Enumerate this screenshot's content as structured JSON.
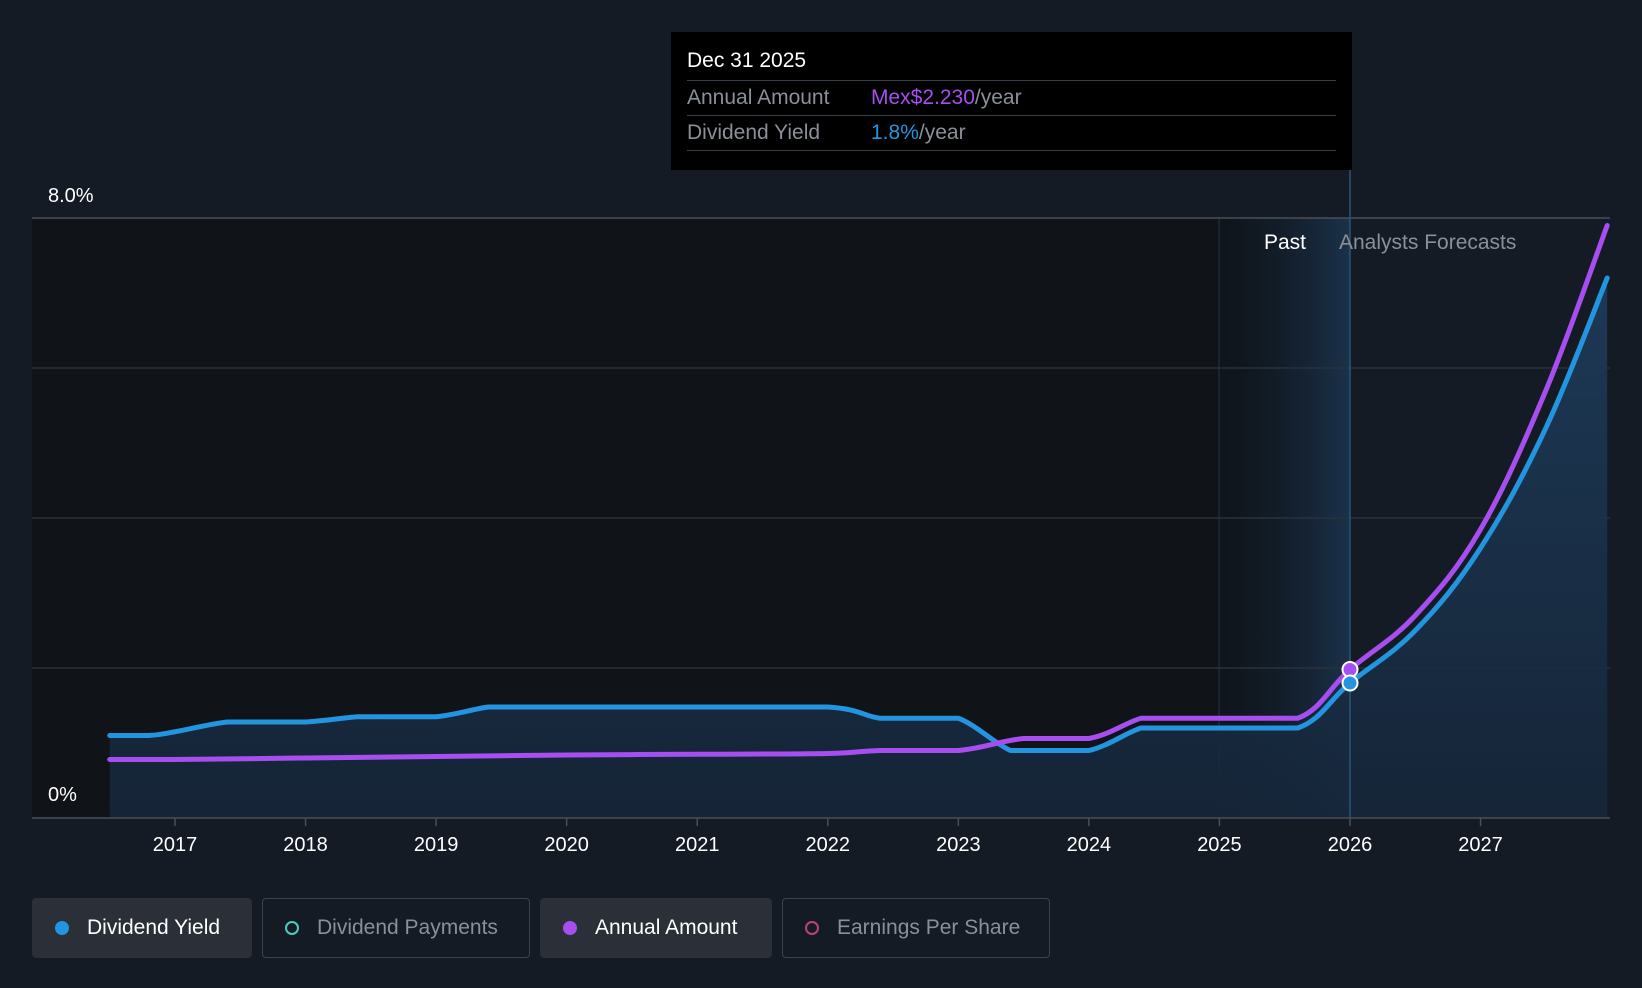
{
  "chart_data": {
    "type": "line",
    "y_axis": {
      "top_label": "8.0%",
      "bottom_label": "0%",
      "ylim": [
        0,
        8
      ]
    },
    "x_axis": {
      "tick_labels": [
        "2017",
        "2018",
        "2019",
        "2020",
        "2021",
        "2022",
        "2023",
        "2024",
        "2025",
        "2026",
        "2027"
      ],
      "xlim": [
        2016.4,
        2027.97
      ]
    },
    "past_label": "Past",
    "forecast_label": "Analysts Forecasts",
    "divider_x": 2026.0,
    "series": [
      {
        "name": "Dividend Yield",
        "color": "#2394df",
        "filled": true,
        "points": [
          [
            2016.5,
            1.1
          ],
          [
            2016.8,
            1.1
          ],
          [
            2017.0,
            1.15
          ],
          [
            2017.4,
            1.28
          ],
          [
            2017.7,
            1.28
          ],
          [
            2018.0,
            1.28
          ],
          [
            2018.4,
            1.35
          ],
          [
            2018.6,
            1.35
          ],
          [
            2019.0,
            1.35
          ],
          [
            2019.4,
            1.48
          ],
          [
            2019.6,
            1.48
          ],
          [
            2020.0,
            1.48
          ],
          [
            2021.0,
            1.48
          ],
          [
            2022.0,
            1.48
          ],
          [
            2022.4,
            1.33
          ],
          [
            2022.7,
            1.33
          ],
          [
            2023.0,
            1.33
          ],
          [
            2023.4,
            0.9
          ],
          [
            2023.6,
            0.9
          ],
          [
            2024.0,
            0.9
          ],
          [
            2024.4,
            1.2
          ],
          [
            2024.6,
            1.2
          ],
          [
            2025.0,
            1.2
          ],
          [
            2025.6,
            1.2
          ],
          [
            2026.0,
            1.8
          ],
          [
            2026.5,
            2.5
          ],
          [
            2027.0,
            3.6
          ],
          [
            2027.5,
            5.2
          ],
          [
            2027.97,
            7.2
          ]
        ]
      },
      {
        "name": "Annual Amount",
        "color": "#a64ef0",
        "filled": false,
        "points": [
          [
            2016.5,
            0.78
          ],
          [
            2017.0,
            0.78
          ],
          [
            2018.0,
            0.8
          ],
          [
            2019.0,
            0.82
          ],
          [
            2020.0,
            0.84
          ],
          [
            2021.0,
            0.85
          ],
          [
            2022.0,
            0.86
          ],
          [
            2022.4,
            0.9
          ],
          [
            2023.0,
            0.9
          ],
          [
            2023.5,
            1.06
          ],
          [
            2024.0,
            1.06
          ],
          [
            2024.4,
            1.33
          ],
          [
            2024.6,
            1.33
          ],
          [
            2025.0,
            1.33
          ],
          [
            2025.6,
            1.33
          ],
          [
            2026.0,
            1.98
          ],
          [
            2026.5,
            2.7
          ],
          [
            2027.0,
            3.85
          ],
          [
            2027.5,
            5.7
          ],
          [
            2027.97,
            7.9
          ]
        ]
      }
    ],
    "markers": [
      {
        "series": "Annual Amount",
        "x": 2026.0,
        "y": 1.98,
        "color": "#a64ef0"
      },
      {
        "series": "Dividend Yield",
        "x": 2026.0,
        "y": 1.8,
        "color": "#2394df"
      }
    ]
  },
  "tooltip": {
    "date": "Dec 31 2025",
    "rows": [
      {
        "label": "Annual Amount",
        "value": "Mex$2.230",
        "unit": "/year"
      },
      {
        "label": "Dividend Yield",
        "value": "1.8%",
        "unit": "/year"
      }
    ]
  },
  "legend": [
    {
      "label": "Dividend Yield",
      "active": true,
      "color": "#2394df"
    },
    {
      "label": "Dividend Payments",
      "active": false,
      "color": "#4fc9c2"
    },
    {
      "label": "Annual Amount",
      "active": true,
      "color": "#a64ef0"
    },
    {
      "label": "Earnings Per Share",
      "active": false,
      "color": "#b9447a"
    }
  ]
}
